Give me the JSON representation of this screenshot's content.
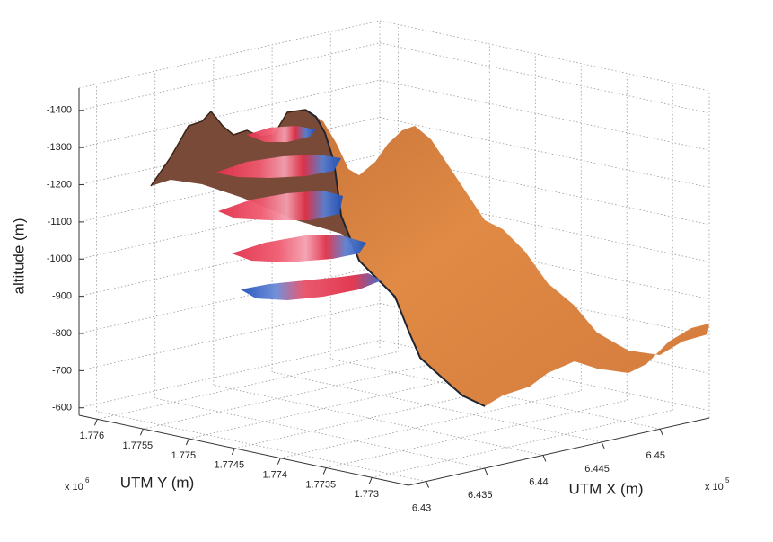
{
  "chart_data": {
    "type": "surface3d",
    "zlabel": "altitude (m)",
    "xlabel": "UTM X (m)",
    "ylabel": "UTM Y (m)",
    "xlim": [
      6.4285,
      6.4542
    ],
    "xticks": [
      6.43,
      6.435,
      6.44,
      6.445,
      6.45
    ],
    "x_multiplier": "x 10",
    "x_exponent": 5,
    "ylim": [
      1.7726,
      1.7762
    ],
    "yticks": [
      1.773,
      1.7735,
      1.774,
      1.7745,
      1.775,
      1.7755,
      1.776
    ],
    "y_multiplier": "x 10",
    "y_exponent": 6,
    "zlim": [
      -580,
      -1460
    ],
    "zticks": [
      -600,
      -700,
      -800,
      -900,
      -1000,
      -1100,
      -1200,
      -1300,
      -1400
    ],
    "grid": true,
    "surface_color": "#e08a45"
  }
}
